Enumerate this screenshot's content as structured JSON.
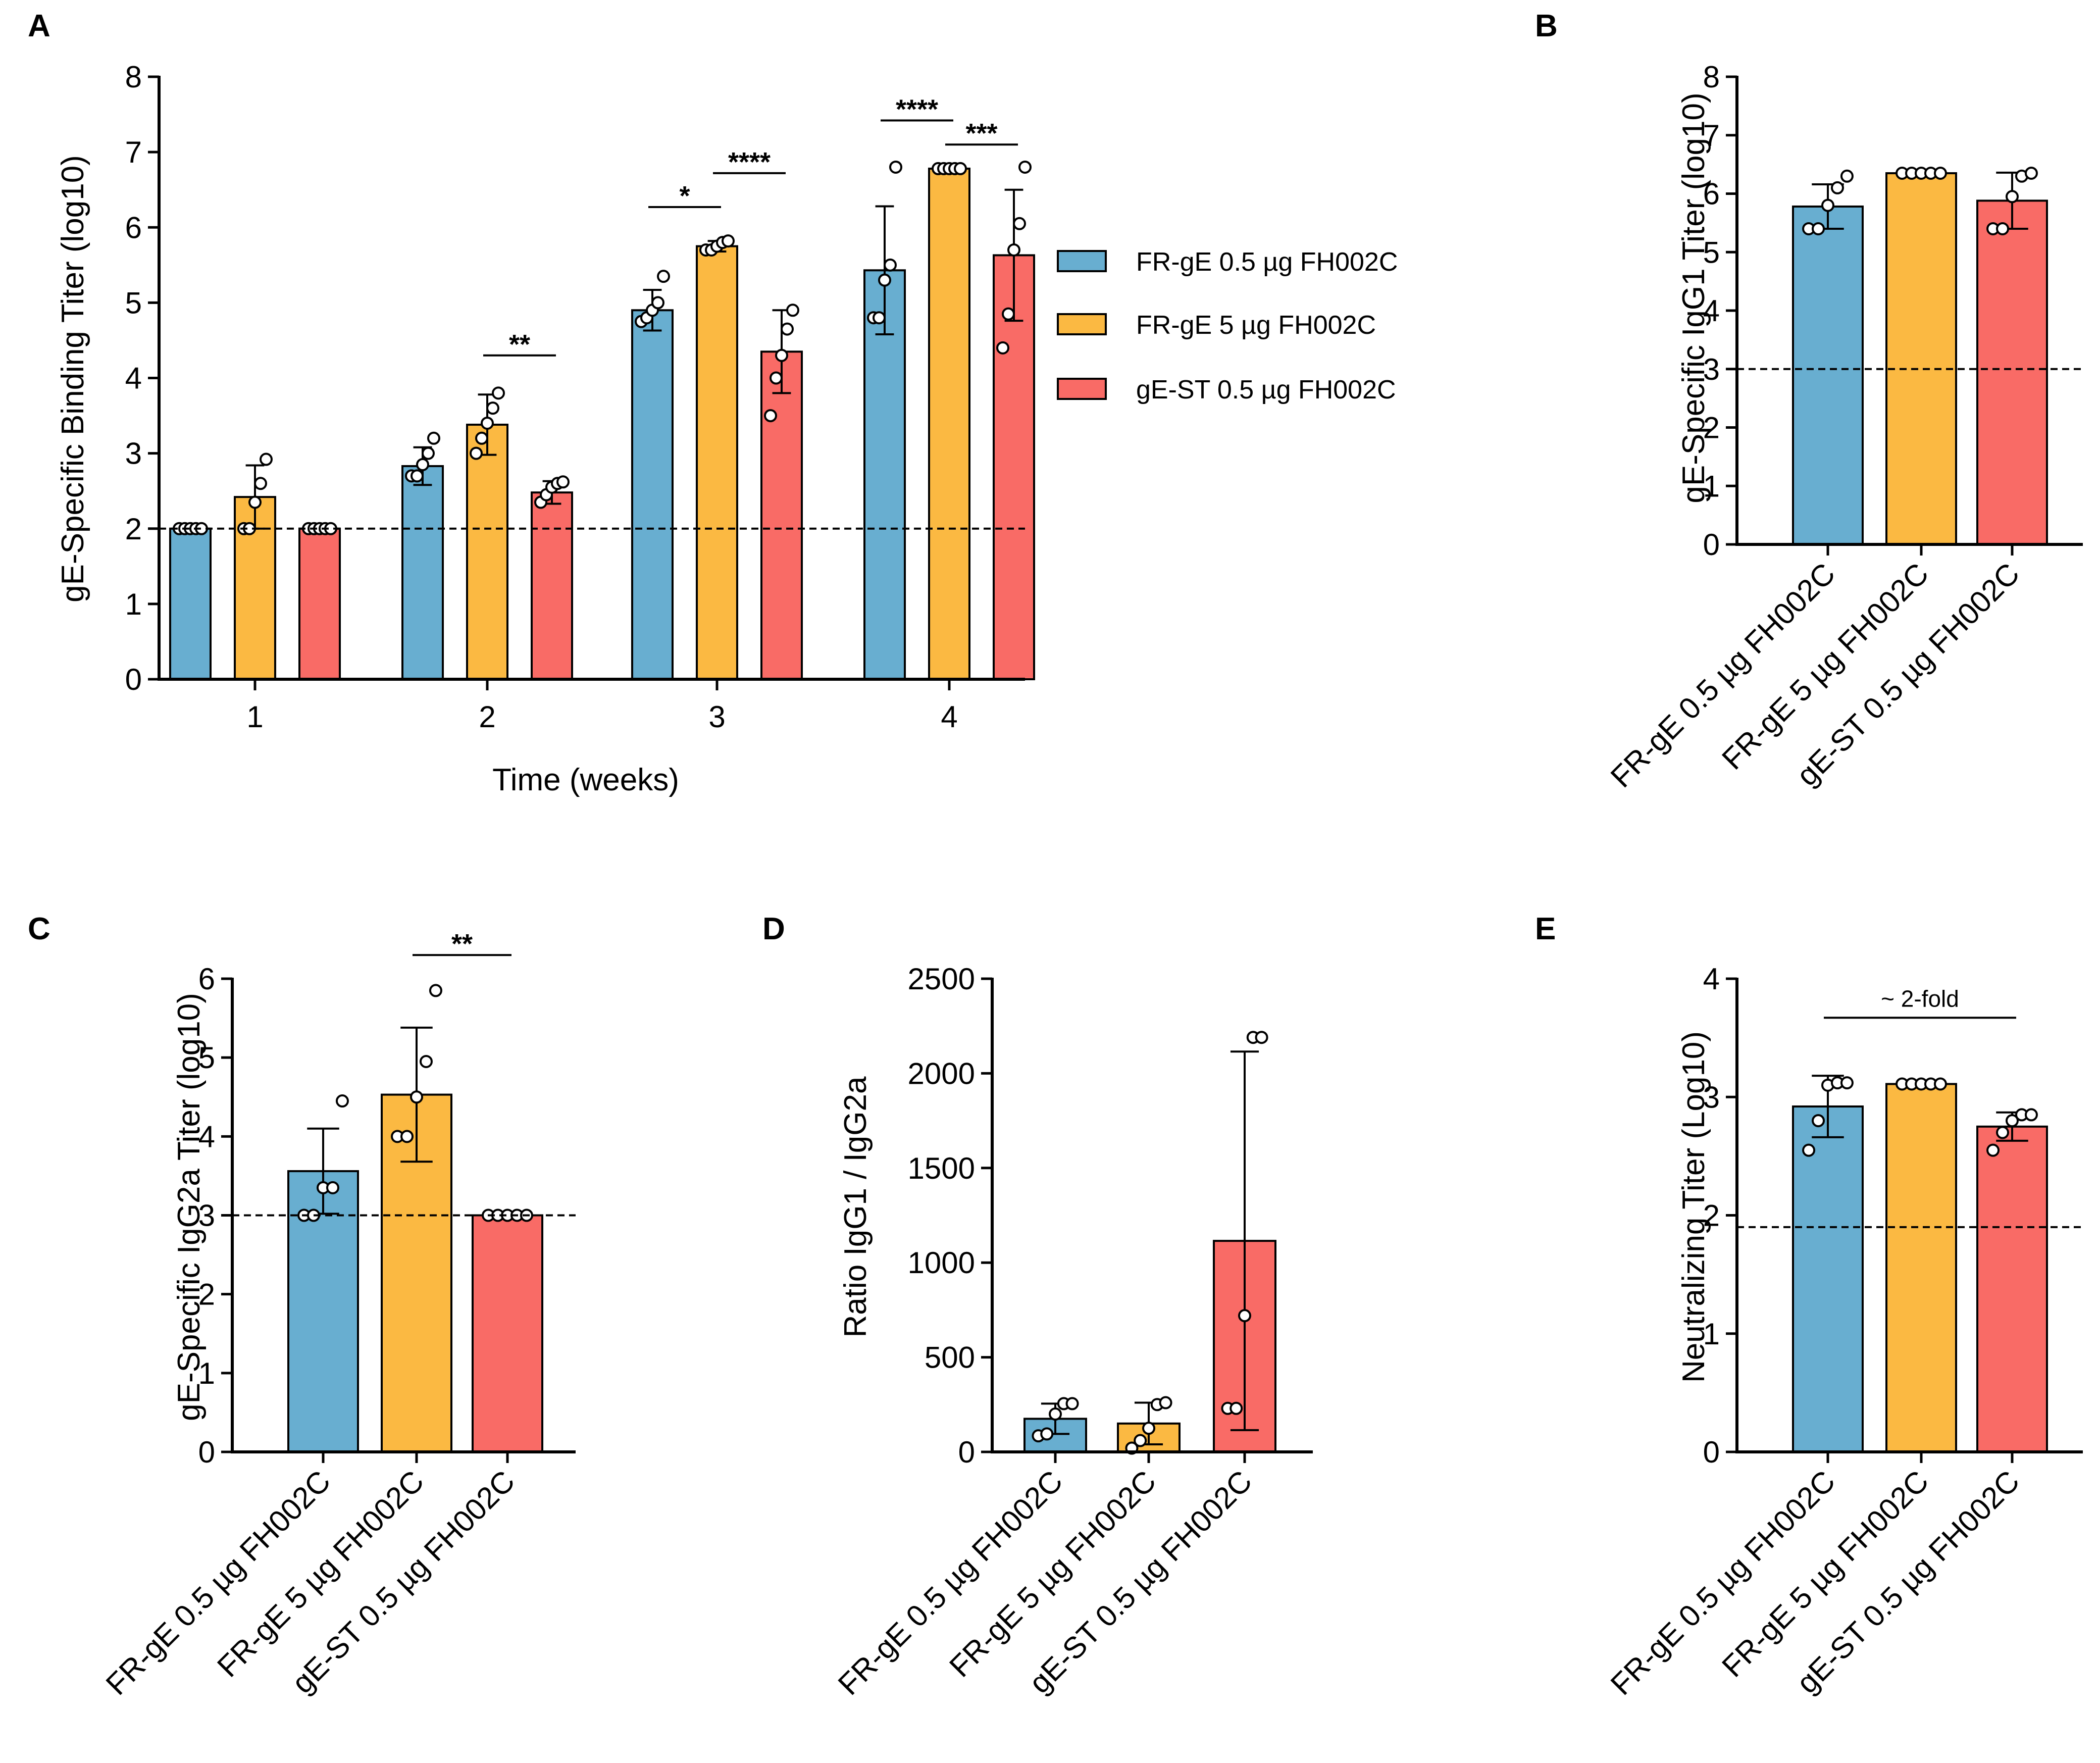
{
  "colors": {
    "blue": "#68aed0",
    "yellow": "#fbb942",
    "red": "#f96b66",
    "axis": "#000000"
  },
  "groups": [
    "FR-gE 0.5 µg FH002C",
    "FR-gE 5 µg FH002C",
    "gE-ST 0.5 µg FH002C"
  ],
  "chart_data": [
    {
      "id": "A",
      "letter": "A",
      "type": "bar",
      "title": "",
      "xlabel": "Time (weeks)",
      "ylabel": "gE-Specific Binding Titer (log10)",
      "categories": [
        "1",
        "2",
        "3",
        "4"
      ],
      "ylim": [
        0,
        8
      ],
      "yticks": [
        "0",
        "1",
        "2",
        "3",
        "4",
        "5",
        "6",
        "7",
        "8"
      ],
      "threshold": 2,
      "legend_position": "right",
      "series": [
        {
          "name": "FR-gE 0.5 µg FH002C",
          "values": [
            2.0,
            2.83,
            4.9,
            5.43
          ],
          "errors": [
            0,
            0.25,
            0.27,
            0.85
          ],
          "points": [
            [
              2,
              2,
              2,
              2,
              2
            ],
            [
              2.7,
              2.7,
              2.85,
              3.0,
              3.2
            ],
            [
              4.75,
              4.8,
              4.9,
              5.0,
              5.35
            ],
            [
              4.8,
              4.8,
              5.3,
              5.5,
              6.8
            ]
          ]
        },
        {
          "name": "FR-gE 5 µg FH002C",
          "values": [
            2.42,
            3.38,
            5.75,
            6.78
          ],
          "errors": [
            0.42,
            0.4,
            0.07,
            0
          ],
          "points": [
            [
              2.0,
              2.0,
              2.35,
              2.6,
              2.92
            ],
            [
              3.0,
              3.2,
              3.4,
              3.6,
              3.8
            ],
            [
              5.7,
              5.7,
              5.75,
              5.8,
              5.82
            ],
            [
              6.78,
              6.78,
              6.78,
              6.78,
              6.78
            ]
          ]
        },
        {
          "name": "gE-ST 0.5 µg FH002C",
          "values": [
            2.0,
            2.48,
            4.35,
            5.63
          ],
          "errors": [
            0,
            0.15,
            0.55,
            0.87
          ],
          "points": [
            [
              2,
              2,
              2,
              2,
              2
            ],
            [
              2.35,
              2.45,
              2.55,
              2.6,
              2.62
            ],
            [
              3.5,
              4.0,
              4.3,
              4.65,
              4.9
            ],
            [
              4.4,
              4.85,
              5.7,
              6.05,
              6.8
            ]
          ]
        }
      ],
      "annotations": [
        {
          "category": 1,
          "from": 1,
          "to": 2,
          "y": 4.3,
          "label": "**"
        },
        {
          "category": 2,
          "from": 0,
          "to": 1,
          "y": 6.27,
          "label": "*"
        },
        {
          "category": 2,
          "from": 1,
          "to": 2,
          "y": 6.72,
          "label": "****"
        },
        {
          "category": 3,
          "from": 0,
          "to": 1,
          "y": 7.42,
          "label": "****"
        },
        {
          "category": 3,
          "from": 1,
          "to": 2,
          "y": 7.1,
          "label": "***"
        }
      ]
    },
    {
      "id": "B",
      "letter": "B",
      "type": "bar",
      "title": "",
      "xlabel": "",
      "ylabel": "gE-Specific IgG1 Titer (log10)",
      "categories": [
        "FR-gE 0.5 µg FH002C",
        "FR-gE 5 µg FH002C",
        "gE-ST 0.5 µg FH002C"
      ],
      "ylim": [
        0,
        8
      ],
      "yticks": [
        "0",
        "1",
        "2",
        "3",
        "4",
        "5",
        "6",
        "7",
        "8"
      ],
      "threshold": 3,
      "values": [
        5.78,
        6.35,
        5.88
      ],
      "errors": [
        0.38,
        0,
        0.48
      ],
      "points": [
        [
          5.4,
          5.4,
          5.8,
          6.1,
          6.3
        ],
        [
          6.35,
          6.35,
          6.35,
          6.35,
          6.35
        ],
        [
          5.4,
          5.4,
          5.95,
          6.3,
          6.35
        ]
      ],
      "annotations": []
    },
    {
      "id": "C",
      "letter": "C",
      "type": "bar",
      "title": "",
      "xlabel": "",
      "ylabel": "gE-Specific IgG2a Titer (log10)",
      "categories": [
        "FR-gE 0.5 µg FH002C",
        "FR-gE 5 µg FH002C",
        "gE-ST 0.5 µg FH002C"
      ],
      "ylim": [
        0,
        6
      ],
      "yticks": [
        "0",
        "1",
        "2",
        "3",
        "4",
        "5",
        "6"
      ],
      "threshold": 3,
      "values": [
        3.56,
        4.53,
        3.0
      ],
      "errors": [
        0.54,
        0.85,
        0
      ],
      "points": [
        [
          3.0,
          3.0,
          3.35,
          3.35,
          4.45
        ],
        [
          4.0,
          4.0,
          4.5,
          4.95,
          5.85
        ],
        [
          3.0,
          3.0,
          3.0,
          3.0,
          3.0
        ]
      ],
      "annotations": [
        {
          "from": 1,
          "to": 2,
          "y": 6.3,
          "label": "**"
        }
      ]
    },
    {
      "id": "D",
      "letter": "D",
      "type": "bar",
      "title": "",
      "xlabel": "",
      "ylabel": "Ratio  IgG1 / IgG2a",
      "categories": [
        "FR-gE 0.5 µg FH002C",
        "FR-gE 5 µg FH002C",
        "gE-ST 0.5 µg FH002C"
      ],
      "ylim": [
        0,
        2500
      ],
      "yticks": [
        "0",
        "500",
        "1000",
        "1500",
        "2000",
        "2500"
      ],
      "threshold": null,
      "values": [
        175,
        150,
        1115
      ],
      "errors": [
        80,
        110,
        1000
      ],
      "points": [
        [
          85,
          95,
          200,
          255,
          255
        ],
        [
          20,
          60,
          125,
          250,
          260
        ],
        [
          230,
          230,
          720,
          2190,
          2190
        ]
      ],
      "annotations": []
    },
    {
      "id": "E",
      "letter": "E",
      "type": "bar",
      "title": "",
      "xlabel": "",
      "ylabel": "Neutralizing Titer (Log10)",
      "categories": [
        "FR-gE 0.5 µg FH002C",
        "FR-gE 5 µg FH002C",
        "gE-ST 0.5 µg FH002C"
      ],
      "ylim": [
        0,
        4
      ],
      "yticks": [
        "0",
        "1",
        "2",
        "3",
        "4"
      ],
      "threshold": 1.9,
      "values": [
        2.92,
        3.11,
        2.75
      ],
      "errors": [
        0.26,
        0,
        0.12
      ],
      "points": [
        [
          2.55,
          2.8,
          3.1,
          3.12,
          3.12
        ],
        [
          3.11,
          3.11,
          3.11,
          3.11,
          3.11
        ],
        [
          2.55,
          2.7,
          2.8,
          2.85,
          2.85
        ]
      ],
      "annotations": [
        {
          "from": 0,
          "to": 2,
          "y": 3.67,
          "label": "~ 2-fold"
        }
      ]
    }
  ]
}
